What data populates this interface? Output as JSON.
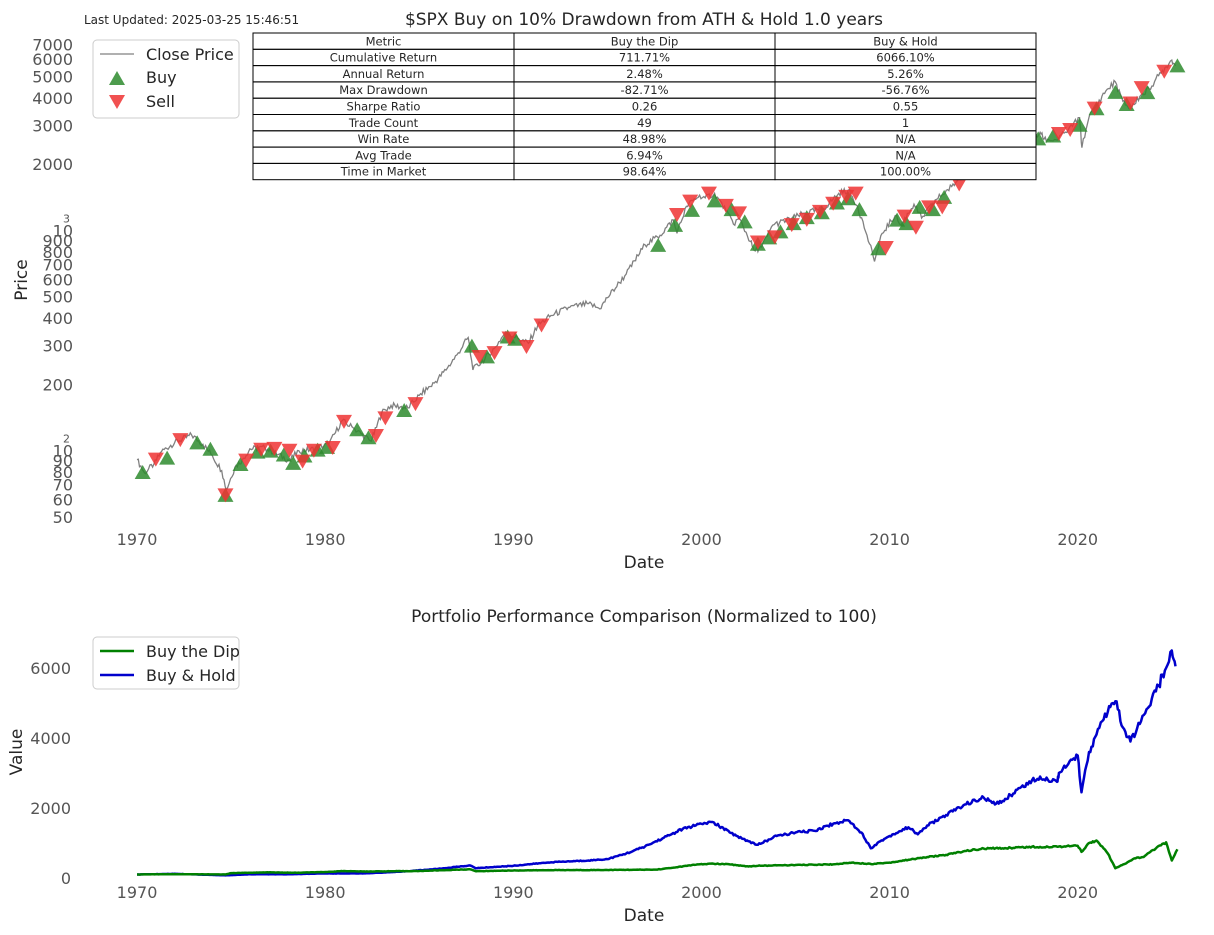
{
  "last_updated": "Last Updated: 2025-03-25 15:46:51",
  "colors": {
    "price_line": "#808080",
    "buy_marker": "#2e8b2e",
    "sell_marker": "#ee3333",
    "buy_the_dip": "#008000",
    "buy_and_hold": "#0000cc",
    "text": "#555555",
    "title_text": "#262626"
  },
  "chart_data": [
    {
      "type": "line",
      "title": "$SPX Buy on 10% Drawdown from ATH & Hold 1.0 years",
      "xlabel": "Date",
      "ylabel": "Price",
      "yscale": "log",
      "xlim": [
        1967.5,
        2026.5
      ],
      "ylim": [
        45,
        7800
      ],
      "x_ticks": [
        1970,
        1980,
        1990,
        2000,
        2010,
        2020
      ],
      "y_ticks": [
        {
          "value": 50,
          "label": "50"
        },
        {
          "value": 60,
          "label": "60"
        },
        {
          "value": 70,
          "label": "70"
        },
        {
          "value": 80,
          "label": "80"
        },
        {
          "value": 90,
          "label": "90"
        },
        {
          "value": 100,
          "label": "10",
          "exp": "2"
        },
        {
          "value": 200,
          "label": "200"
        },
        {
          "value": 300,
          "label": "300"
        },
        {
          "value": 400,
          "label": "400"
        },
        {
          "value": 500,
          "label": "500"
        },
        {
          "value": 600,
          "label": "600"
        },
        {
          "value": 700,
          "label": "700"
        },
        {
          "value": 800,
          "label": "800"
        },
        {
          "value": 900,
          "label": "900"
        },
        {
          "value": 1000,
          "label": "10",
          "exp": "3"
        },
        {
          "value": 2000,
          "label": "2000"
        },
        {
          "value": 3000,
          "label": "3000"
        },
        {
          "value": 4000,
          "label": "4000"
        },
        {
          "value": 5000,
          "label": "5000"
        },
        {
          "value": 6000,
          "label": "6000"
        },
        {
          "value": 7000,
          "label": "7000"
        }
      ],
      "grid": false,
      "legend_position": "top-left",
      "legend": [
        "Close Price",
        "Buy",
        "Sell"
      ],
      "series": [
        {
          "name": "Close Price",
          "x": [
            1970.0,
            1970.4,
            1970.9,
            1971.3,
            1972.0,
            1972.9,
            1973.5,
            1974.0,
            1974.5,
            1974.75,
            1975.2,
            1975.6,
            1976.0,
            1976.8,
            1977.5,
            1978.1,
            1978.6,
            1979.2,
            1980.2,
            1980.9,
            1981.5,
            1982.4,
            1982.6,
            1983.0,
            1983.5,
            1984.4,
            1985.0,
            1985.8,
            1986.5,
            1987.0,
            1987.6,
            1987.85,
            1988.5,
            1989.0,
            1989.6,
            1990.3,
            1990.8,
            1991.3,
            1992.0,
            1993.0,
            1994.0,
            1994.6,
            1995.0,
            1996.0,
            1997.0,
            1997.8,
            1998.5,
            1998.7,
            1999.2,
            1999.9,
            2000.2,
            2000.7,
            2001.3,
            2001.7,
            2002.0,
            2002.6,
            2002.8,
            2003.2,
            2003.8,
            2004.5,
            2005.5,
            2006.5,
            2007.3,
            2007.8,
            2008.3,
            2008.8,
            2009.2,
            2009.6,
            2010.3,
            2010.6,
            2011.3,
            2011.7,
            2012.5,
            2013.3,
            2014.0,
            2014.8,
            2015.4,
            2015.7,
            2016.1,
            2016.6,
            2017.5,
            2018.0,
            2018.2,
            2018.9,
            2019.5,
            2020.1,
            2020.22,
            2020.6,
            2021.0,
            2021.5,
            2022.0,
            2022.4,
            2022.8,
            2023.3,
            2023.8,
            2024.3,
            2024.7,
            2025.0,
            2025.2
          ],
          "y": [
            92,
            80,
            88,
            100,
            110,
            119,
            108,
            96,
            82,
            67,
            85,
            92,
            103,
            104,
            97,
            91,
            101,
            102,
            108,
            138,
            128,
            112,
            120,
            150,
            162,
            158,
            180,
            205,
            240,
            275,
            330,
            235,
            265,
            295,
            350,
            325,
            310,
            375,
            415,
            452,
            470,
            445,
            500,
            640,
            870,
            960,
            1130,
            980,
            1300,
            1460,
            1420,
            1490,
            1240,
            1080,
            1150,
            900,
            820,
            850,
            1070,
            1120,
            1210,
            1270,
            1490,
            1540,
            1300,
            960,
            730,
            980,
            1180,
            1070,
            1330,
            1150,
            1400,
            1600,
            1840,
            2030,
            2110,
            1900,
            1920,
            2160,
            2450,
            2820,
            2620,
            2600,
            2900,
            3290,
            2400,
            3300,
            3750,
            4350,
            4780,
            3900,
            3600,
            4100,
            4450,
            5100,
            5600,
            6000,
            5650
          ]
        },
        {
          "name": "Buy",
          "x": [
            1970.3,
            1971.6,
            1973.2,
            1973.9,
            1974.7,
            1975.5,
            1976.4,
            1977.1,
            1977.8,
            1978.3,
            1978.9,
            1979.6,
            1980.1,
            1981.7,
            1982.3,
            1984.2,
            1987.8,
            1988.6,
            1989.7,
            1990.1,
            1997.7,
            1998.6,
            1999.5,
            2000.7,
            2001.6,
            2002.3,
            2003.0,
            2003.6,
            2004.2,
            2004.9,
            2005.6,
            2006.4,
            2007.2,
            2007.8,
            2008.4,
            2009.4,
            2010.4,
            2010.9,
            2011.6,
            2012.3,
            2012.9,
            2015.6,
            2017.9,
            2018.7,
            2020.1,
            2021.0,
            2022.0,
            2022.6,
            2023.7,
            2025.3
          ],
          "y": [
            80,
            93,
            109,
            102,
            63,
            87,
            99,
            100,
            96,
            88,
            95,
            101,
            104,
            125,
            115,
            153,
            300,
            268,
            330,
            322,
            860,
            1060,
            1240,
            1370,
            1250,
            1100,
            870,
            930,
            990,
            1080,
            1150,
            1210,
            1340,
            1400,
            1250,
            830,
            1120,
            1080,
            1280,
            1250,
            1420,
            1890,
            2620,
            2700,
            3020,
            3590,
            4260,
            3750,
            4250,
            5620
          ]
        },
        {
          "name": "Sell",
          "x": [
            1971.0,
            1972.3,
            1974.7,
            1975.8,
            1976.6,
            1977.3,
            1978.1,
            1978.8,
            1979.4,
            1980.4,
            1981.0,
            1982.7,
            1983.2,
            1984.8,
            1988.2,
            1989.0,
            1989.8,
            1990.7,
            1991.5,
            1998.7,
            1999.4,
            2000.4,
            2001.3,
            2002.0,
            2003.0,
            2003.9,
            2004.8,
            2005.6,
            2006.3,
            2007.0,
            2007.7,
            2008.2,
            2009.8,
            2010.8,
            2011.4,
            2012.1,
            2012.8,
            2013.7,
            2016.4,
            2019.0,
            2019.6,
            2020.9,
            2022.8,
            2023.4,
            2024.6
          ],
          "y": [
            93,
            114,
            64,
            92,
            103,
            104,
            102,
            91,
            102,
            105,
            138,
            119,
            143,
            166,
            272,
            283,
            330,
            302,
            378,
            1200,
            1380,
            1500,
            1320,
            1220,
            900,
            950,
            1080,
            1140,
            1240,
            1350,
            1450,
            1500,
            850,
            1180,
            1050,
            1300,
            1300,
            1650,
            2100,
            2800,
            2920,
            3650,
            3850,
            4520,
            5370
          ]
        }
      ],
      "table": {
        "columns": [
          "Metric",
          "Buy the Dip",
          "Buy & Hold"
        ],
        "rows": [
          [
            "Cumulative Return",
            "711.71%",
            "6066.10%"
          ],
          [
            "Annual Return",
            "2.48%",
            "5.26%"
          ],
          [
            "Max Drawdown",
            "-82.71%",
            "-56.76%"
          ],
          [
            "Sharpe Ratio",
            "0.26",
            "0.55"
          ],
          [
            "Trade Count",
            "49",
            "1"
          ],
          [
            "Win Rate",
            "48.98%",
            "N/A"
          ],
          [
            "Avg Trade",
            "6.94%",
            "N/A"
          ],
          [
            "Time in Market",
            "98.64%",
            "100.00%"
          ]
        ]
      }
    },
    {
      "type": "line",
      "title": "Portfolio Performance Comparison (Normalized to 100)",
      "xlabel": "Date",
      "ylabel": "Value",
      "xlim": [
        1967.5,
        2026.5
      ],
      "ylim": [
        0,
        6800
      ],
      "x_ticks": [
        1970,
        1980,
        1990,
        2000,
        2010,
        2020
      ],
      "y_ticks": [
        {
          "value": 0,
          "label": "0"
        },
        {
          "value": 2000,
          "label": "2000"
        },
        {
          "value": 4000,
          "label": "4000"
        },
        {
          "value": 6000,
          "label": "6000"
        }
      ],
      "grid": false,
      "legend_position": "top-left",
      "legend": [
        "Buy the Dip",
        "Buy & Hold"
      ],
      "series": [
        {
          "name": "Buy the Dip",
          "x": [
            1970.0,
            1972.0,
            1974.7,
            1975.0,
            1977.0,
            1978.5,
            1980.0,
            1981.0,
            1982.0,
            1983.0,
            1985.0,
            1987.7,
            1988.0,
            1990.0,
            1992.0,
            1995.0,
            1997.6,
            1998.6,
            1999.5,
            2000.5,
            2001.5,
            2002.5,
            2003.0,
            2004.0,
            2005.0,
            2007.0,
            2008.0,
            2009.0,
            2010.0,
            2011.0,
            2012.0,
            2013.0,
            2014.0,
            2015.0,
            2016.0,
            2017.0,
            2018.0,
            2019.0,
            2020.0,
            2020.2,
            2020.6,
            2021.0,
            2021.6,
            2022.0,
            2022.5,
            2023.0,
            2023.5,
            2024.0,
            2024.7,
            2025.0,
            2025.3
          ],
          "y": [
            100,
            110,
            100,
            140,
            160,
            150,
            170,
            200,
            185,
            190,
            200,
            250,
            195,
            215,
            225,
            230,
            240,
            300,
            370,
            410,
            390,
            330,
            350,
            360,
            370,
            390,
            440,
            400,
            440,
            520,
            600,
            660,
            770,
            840,
            850,
            880,
            890,
            900,
            920,
            750,
            1000,
            1070,
            700,
            280,
            400,
            560,
            600,
            800,
            1020,
            500,
            820
          ]
        },
        {
          "name": "Buy & Hold",
          "x": [
            1970.0,
            1972.0,
            1974.7,
            1976.0,
            1978.0,
            1980.0,
            1982.0,
            1984.0,
            1986.0,
            1987.7,
            1988.0,
            1990.0,
            1992.0,
            1994.0,
            1995.0,
            1996.0,
            1997.0,
            1998.0,
            1999.0,
            2000.0,
            2000.6,
            2001.5,
            2002.5,
            2003.0,
            2004.0,
            2005.0,
            2006.0,
            2007.0,
            2007.8,
            2008.5,
            2009.0,
            2009.5,
            2010.0,
            2011.0,
            2011.5,
            2012.0,
            2013.0,
            2014.0,
            2015.0,
            2015.6,
            2016.0,
            2017.0,
            2018.0,
            2018.9,
            2019.0,
            2020.0,
            2020.2,
            2020.6,
            2021.0,
            2021.6,
            2022.0,
            2022.4,
            2022.8,
            2023.3,
            2023.8,
            2024.3,
            2024.7,
            2025.0,
            2025.2
          ],
          "y": [
            100,
            120,
            75,
            105,
            105,
            130,
            130,
            180,
            260,
            360,
            280,
            350,
            450,
            500,
            540,
            700,
            900,
            1150,
            1400,
            1550,
            1600,
            1300,
            1050,
            950,
            1200,
            1300,
            1350,
            1550,
            1650,
            1300,
            850,
            1050,
            1200,
            1450,
            1250,
            1500,
            1800,
            2100,
            2300,
            2100,
            2200,
            2600,
            2900,
            2750,
            3000,
            3500,
            2450,
            3600,
            4100,
            4750,
            5050,
            4300,
            3900,
            4400,
            4900,
            5500,
            6000,
            6500,
            6050
          ]
        }
      ]
    }
  ]
}
